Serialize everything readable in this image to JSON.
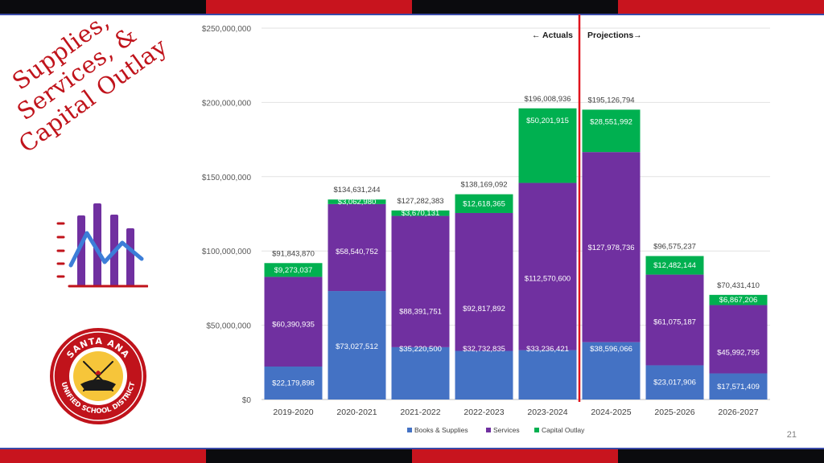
{
  "slide": {
    "title_lines": [
      "Supplies,",
      "Services, &",
      "Capital Outlay"
    ],
    "page_number": "21",
    "seal_text_top": "SANTA ANA",
    "seal_text_bottom": "UNIFIED SCHOOL DISTRICT"
  },
  "colors": {
    "books": "#4472c4",
    "services": "#7030a0",
    "capital": "#00b050",
    "divider": "#e0141e",
    "accent_red": "#c0131b"
  },
  "chart_data": {
    "type": "bar",
    "stacked": true,
    "title": "",
    "xlabel": "",
    "ylabel": "",
    "ylim": [
      0,
      250000000
    ],
    "yticks": [
      {
        "value": 0,
        "label": "$0"
      },
      {
        "value": 50000000,
        "label": "$50,000,000"
      },
      {
        "value": 100000000,
        "label": "$100,000,000"
      },
      {
        "value": 150000000,
        "label": "$150,000,000"
      },
      {
        "value": 200000000,
        "label": "$200,000,000"
      },
      {
        "value": 250000000,
        "label": "$250,000,000"
      }
    ],
    "categories": [
      "2019-2020",
      "2020-2021",
      "2021-2022",
      "2022-2023",
      "2023-2024",
      "2024-2025",
      "2025-2026",
      "2026-2027"
    ],
    "series": [
      {
        "name": "Books & Supplies",
        "color_key": "books",
        "values": [
          22179898,
          73027512,
          35220500,
          32732835,
          33236421,
          38596066,
          23017906,
          17571409
        ],
        "labels": [
          "$22,179,898",
          "$73,027,512",
          "$35,220,500",
          "$32,732,835",
          "$33,236,421",
          "$38,596,066",
          "$23,017,906",
          "$17,571,409"
        ]
      },
      {
        "name": "Services",
        "color_key": "services",
        "values": [
          60390935,
          58540752,
          88391751,
          92817892,
          112570600,
          127978736,
          61075187,
          45992795
        ],
        "labels": [
          "$60,390,935",
          "$58,540,752",
          "$88,391,751",
          "$92,817,892",
          "$112,570,600",
          "$127,978,736",
          "$61,075,187",
          "$45,992,795"
        ]
      },
      {
        "name": "Capital Outlay",
        "color_key": "capital",
        "values": [
          9273037,
          3062980,
          3670131,
          12618365,
          50201915,
          28551992,
          12482144,
          6867206
        ],
        "labels": [
          "$9,273,037",
          "$3,062,980",
          "$3,670,131",
          "$12,618,365",
          "$50,201,915",
          "$28,551,992",
          "$12,482,144",
          "$6,867,206"
        ]
      }
    ],
    "totals": [
      91843870,
      134631244,
      127282383,
      138169092,
      196008936,
      195126794,
      96575237,
      70431410
    ],
    "total_labels": [
      "$91,843,870",
      "$134,631,244",
      "$127,282,383",
      "$138,169,092",
      "$196,008,936",
      "$195,126,794",
      "$96,575,237",
      "$70,431,410"
    ],
    "divider_after_category": "2023-2024",
    "annotations": {
      "actuals": "Actuals",
      "projections": "Projections"
    },
    "legend_position": "bottom",
    "grid": true
  }
}
